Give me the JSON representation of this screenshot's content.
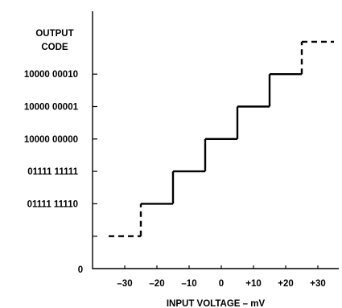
{
  "chart_data": {
    "type": "line",
    "subtype": "step",
    "ylabel_lines": [
      "OUTPUT",
      "CODE"
    ],
    "xlabel": "INPUT VOLTAGE – mV",
    "xlim": [
      -40,
      40
    ],
    "ylim": [
      0,
      7
    ],
    "x_ticks": [
      -30,
      -20,
      -10,
      0,
      10,
      20,
      30
    ],
    "x_tick_labels": [
      "–30",
      "–20",
      "–10",
      "0",
      "+10",
      "+20",
      "+30"
    ],
    "y_ticks": [
      1,
      2,
      3,
      4,
      5,
      6
    ],
    "y_tick_labels": [
      "",
      "01111 11110",
      "01111 11111",
      "10000 00000",
      "10000 00001",
      "10000 00010"
    ],
    "origin_label": "0",
    "grid": false,
    "steps": [
      {
        "x_start": -35,
        "x_end": -25,
        "level": 1,
        "style": "dashed"
      },
      {
        "x_start": -25,
        "x_end": -15,
        "level": 2,
        "style": "solid"
      },
      {
        "x_start": -15,
        "x_end": -5,
        "level": 3,
        "style": "solid"
      },
      {
        "x_start": -5,
        "x_end": 5,
        "level": 4,
        "style": "solid"
      },
      {
        "x_start": 5,
        "x_end": 15,
        "level": 5,
        "style": "solid"
      },
      {
        "x_start": 15,
        "x_end": 25,
        "level": 6,
        "style": "solid"
      },
      {
        "x_start": 25,
        "x_end": 35,
        "level": 7,
        "style": "dashed"
      }
    ]
  }
}
